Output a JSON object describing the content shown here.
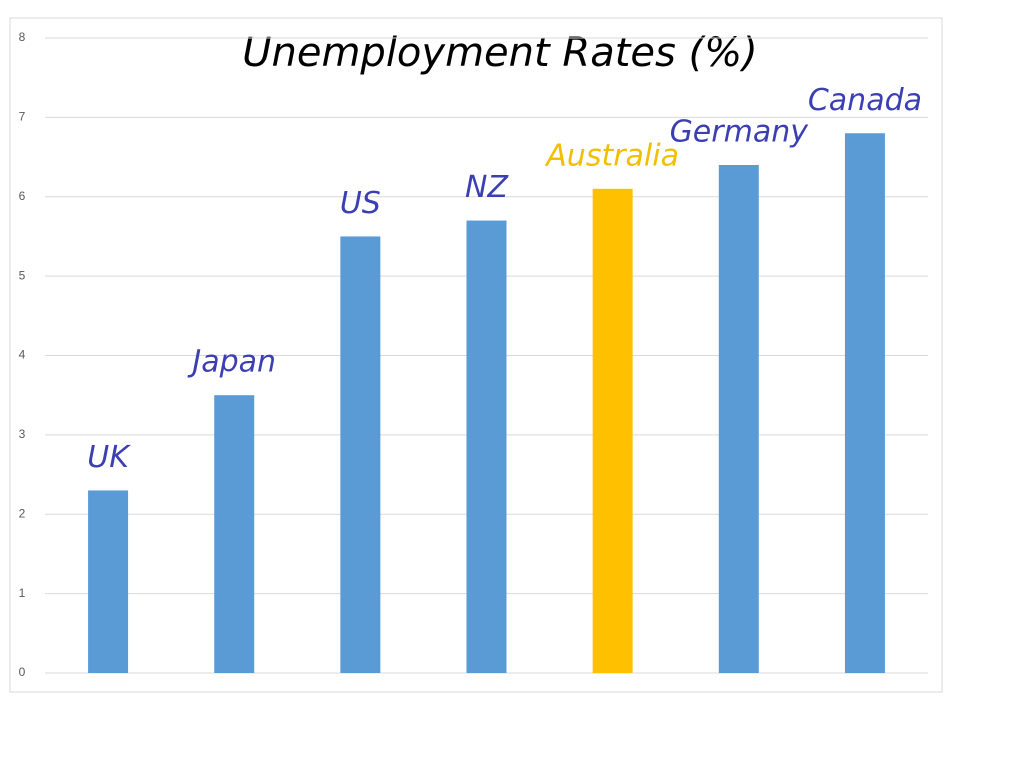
{
  "chart_data": {
    "type": "bar",
    "title": "Unemployment Rates (%)",
    "categories": [
      "UK",
      "Japan",
      "US",
      "NZ",
      "Australia",
      "Germany",
      "Canada"
    ],
    "values": [
      2.3,
      3.5,
      5.5,
      5.7,
      6.1,
      6.4,
      6.8
    ],
    "colors": [
      "#5b9bd5",
      "#5b9bd5",
      "#5b9bd5",
      "#5b9bd5",
      "#ffc000",
      "#5b9bd5",
      "#5b9bd5"
    ],
    "label_colors": [
      "#3b3fb3",
      "#3b3fb3",
      "#3b3fb3",
      "#3b3fb3",
      "#f0c000",
      "#3b3fb3",
      "#3b3fb3"
    ],
    "ylim": [
      0,
      8
    ],
    "yticks": [
      0,
      1,
      2,
      3,
      4,
      5,
      6,
      7,
      8
    ],
    "grid": true
  }
}
